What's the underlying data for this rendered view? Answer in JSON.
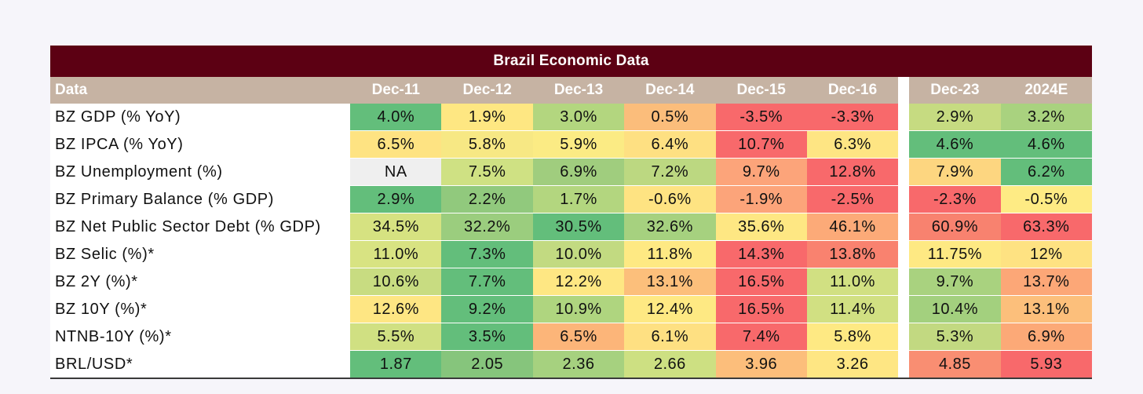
{
  "chart_data": {
    "type": "table",
    "title": "Brazil Economic Data",
    "header_label": "Data",
    "columns": [
      "Dec-11",
      "Dec-12",
      "Dec-13",
      "Dec-14",
      "Dec-15",
      "Dec-16",
      "Dec-23",
      "2024E"
    ],
    "rows": [
      {
        "label": "BZ GDP (% YoY)",
        "values": [
          "4.0%",
          "1.9%",
          "3.0%",
          "0.5%",
          "-3.5%",
          "-3.3%",
          "2.9%",
          "3.2%"
        ],
        "colors": [
          "#63be7b",
          "#fee782",
          "#b3d67f",
          "#fbbd7b",
          "#f8696b",
          "#f8696b",
          "#c6db81",
          "#a9d27f"
        ]
      },
      {
        "label": "BZ IPCA (% YoY)",
        "values": [
          "6.5%",
          "5.8%",
          "5.9%",
          "6.4%",
          "10.7%",
          "6.3%",
          "4.6%",
          "4.6%"
        ],
        "colors": [
          "#fee382",
          "#f7e884",
          "#fbeb84",
          "#fee082",
          "#f8696b",
          "#fee583",
          "#63be7b",
          "#63be7b"
        ]
      },
      {
        "label": "BZ Unemployment (%)",
        "values": [
          "NA",
          "7.5%",
          "6.9%",
          "7.2%",
          "9.7%",
          "12.8%",
          "7.9%",
          "6.2%"
        ],
        "colors": [
          "#efefef",
          "#cfe183",
          "#a0cd7e",
          "#bcd881",
          "#fca47a",
          "#f8696b",
          "#fdd680",
          "#63be7b"
        ]
      },
      {
        "label": "BZ Primary Balance (% GDP)",
        "values": [
          "2.9%",
          "2.2%",
          "1.7%",
          "-0.6%",
          "-1.9%",
          "-2.5%",
          "-2.3%",
          "-0.5%"
        ],
        "colors": [
          "#63be7b",
          "#91c97d",
          "#b3d67f",
          "#fee382",
          "#fca47a",
          "#f8696b",
          "#f8696b",
          "#feeb84"
        ]
      },
      {
        "label": "BZ Net Public Sector Debt (% GDP)",
        "values": [
          "34.5%",
          "32.2%",
          "30.5%",
          "32.6%",
          "35.6%",
          "46.1%",
          "60.9%",
          "63.3%"
        ],
        "colors": [
          "#d6e281",
          "#9bcd7e",
          "#63be7b",
          "#a6d17f",
          "#fee783",
          "#fcaa78",
          "#f8826f",
          "#f8696b"
        ]
      },
      {
        "label": "BZ Selic (%)*",
        "values": [
          "11.0%",
          "7.3%",
          "10.0%",
          "11.8%",
          "14.3%",
          "13.8%",
          "11.75%",
          "12%"
        ],
        "colors": [
          "#d8e382",
          "#63be7b",
          "#c2da81",
          "#fee983",
          "#f8696b",
          "#f9826f",
          "#fee983",
          "#fee282"
        ]
      },
      {
        "label": "BZ 2Y (%)*",
        "values": [
          "10.6%",
          "7.7%",
          "12.2%",
          "13.1%",
          "16.5%",
          "11.0%",
          "9.7%",
          "13.7%"
        ],
        "colors": [
          "#c8dc81",
          "#63be7b",
          "#fee783",
          "#fcbf7b",
          "#f8696b",
          "#d1e082",
          "#a9d27f",
          "#fca777"
        ]
      },
      {
        "label": "BZ 10Y (%)*",
        "values": [
          "12.6%",
          "9.2%",
          "10.9%",
          "12.4%",
          "16.5%",
          "11.4%",
          "10.4%",
          "13.1%"
        ],
        "colors": [
          "#fee683",
          "#63be7b",
          "#afd57f",
          "#fee983",
          "#f8696b",
          "#d1e082",
          "#a3d07e",
          "#fcbf7b"
        ]
      },
      {
        "label": "NTNB-10Y (%)*",
        "values": [
          "5.5%",
          "3.5%",
          "6.5%",
          "6.1%",
          "7.4%",
          "5.8%",
          "5.3%",
          "6.9%"
        ],
        "colors": [
          "#d0e082",
          "#63be7b",
          "#fcb579",
          "#fee082",
          "#f8696b",
          "#fee983",
          "#c2d981",
          "#fca977"
        ]
      },
      {
        "label": "BRL/USD*",
        "values": [
          "1.87",
          "2.05",
          "2.36",
          "2.66",
          "3.96",
          "3.26",
          "4.85",
          "5.93"
        ],
        "colors": [
          "#63be7b",
          "#86c57c",
          "#a6d17f",
          "#cde082",
          "#fcbe7b",
          "#fee683",
          "#f98e72",
          "#f8696b"
        ]
      }
    ],
    "note": "Gap column separates Dec-16 from Dec-23"
  }
}
